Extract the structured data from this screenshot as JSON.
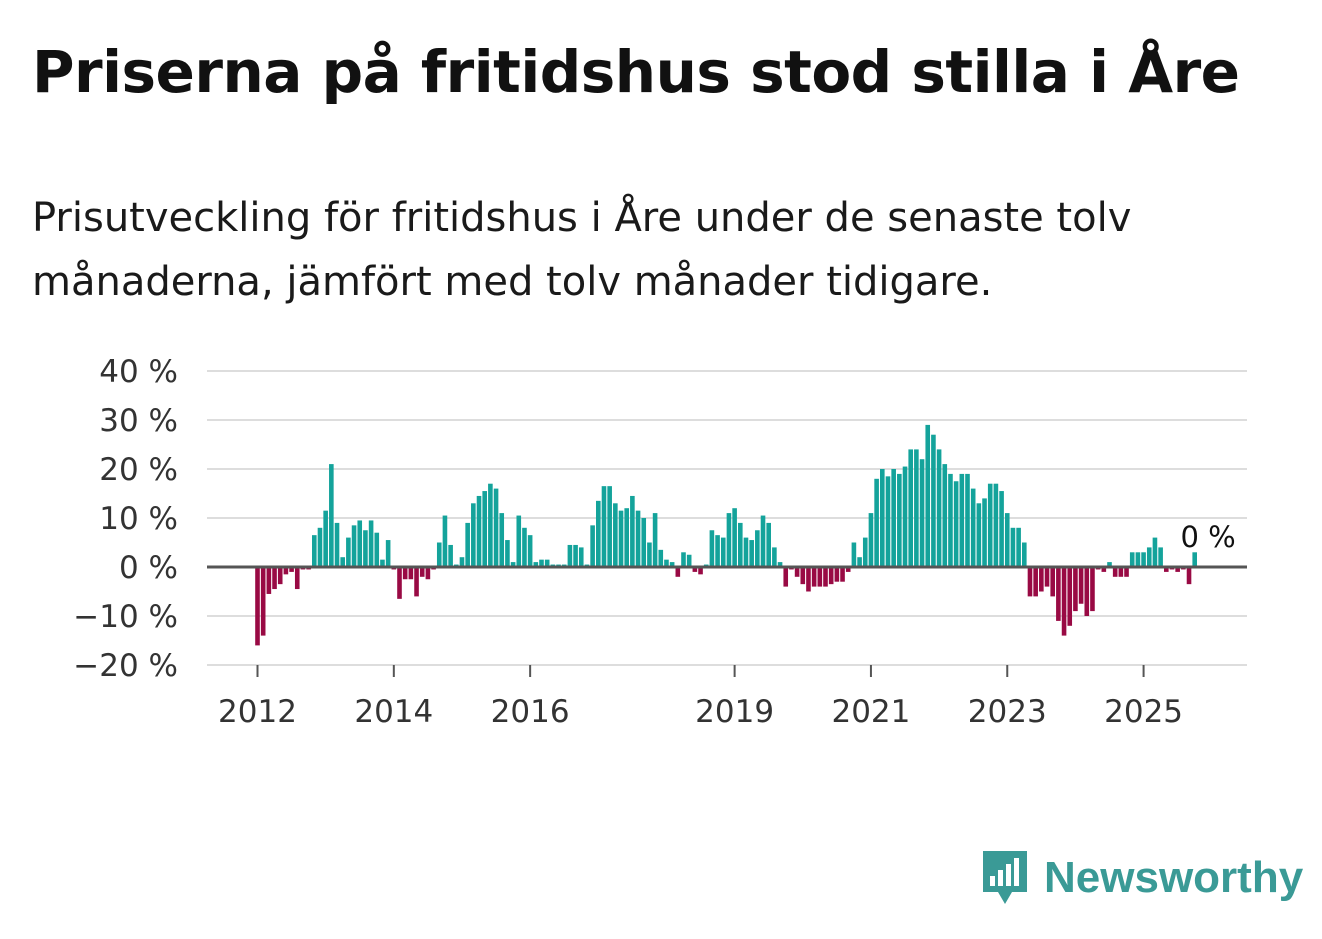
{
  "title": "Priserna på fritidshus stod stilla i Åre",
  "subtitle": "Prisutveckling för fritidshus i Åre under de senaste tolv månaderna, jämfört med tolv månader tidigare.",
  "brand": {
    "name": "Newsworthy",
    "icon": "newsworthy-logo-icon",
    "color": "#3a9a96"
  },
  "colors": {
    "positive": "#14a39b",
    "negative": "#990a44",
    "grid": "#dddddd",
    "zero_line": "#555555"
  },
  "chart_data": {
    "type": "bar",
    "title": "Priserna på fritidshus stod stilla i Åre",
    "ylabel": "",
    "xlabel": "",
    "ylim": [
      -20,
      40
    ],
    "yticks": [
      -20,
      -10,
      0,
      10,
      20,
      30,
      40
    ],
    "ytick_labels": [
      "−20 %",
      "−10 %",
      "0 %",
      "10 %",
      "20 %",
      "30 %",
      "40 %"
    ],
    "x_start": "2012-01",
    "x_end": "2025-12",
    "xticks": [
      "2012",
      "2014",
      "2016",
      "2019",
      "2021",
      "2023",
      "2025"
    ],
    "last_value_label": "0 %",
    "series": [
      {
        "name": "Prisutveckling",
        "values": [
          -16,
          -14,
          -5.5,
          -4.5,
          -3.5,
          -1.5,
          -1,
          -4.5,
          -0.5,
          -0.5,
          6.5,
          8,
          11.5,
          21,
          9,
          2,
          6,
          8.5,
          9.5,
          7.5,
          9.5,
          7,
          1.5,
          5.5,
          -0.5,
          -6.5,
          -2.5,
          -2.5,
          -6,
          -2,
          -2.5,
          -0.5,
          5,
          10.5,
          4.5,
          0.5,
          2,
          9,
          13,
          14.5,
          15.5,
          17,
          16,
          11,
          5.5,
          1,
          10.5,
          8,
          6.5,
          1,
          1.5,
          1.5,
          0.5,
          0.5,
          0.5,
          4.5,
          4.5,
          4,
          0.5,
          8.5,
          13.5,
          16.5,
          16.5,
          13,
          11.5,
          12,
          14.5,
          11.5,
          10,
          5,
          11,
          3.5,
          1.5,
          1,
          -2,
          3,
          2.5,
          -1,
          -1.5,
          0.5,
          7.5,
          6.5,
          6,
          11,
          12,
          9,
          6,
          5.5,
          7.5,
          10.5,
          9,
          4,
          1,
          -4,
          -0.5,
          -2,
          -3.5,
          -5,
          -4,
          -4,
          -4,
          -3.5,
          -3,
          -3,
          -1,
          5,
          2,
          6,
          11,
          18,
          20,
          18.5,
          20,
          19,
          20.5,
          24,
          24,
          22,
          29,
          27,
          24,
          21,
          19,
          17.5,
          19,
          19,
          16,
          13,
          14,
          17,
          17,
          15.5,
          11,
          8,
          8,
          5,
          -6,
          -6,
          -5,
          -4,
          -6,
          -11,
          -14,
          -12,
          -9,
          -7.5,
          -10,
          -9,
          -0.5,
          -1,
          1,
          -2,
          -2,
          -2,
          3,
          3,
          3,
          4,
          6,
          4,
          -1,
          -0.5,
          -1,
          -0.5,
          -3.5,
          3,
          0,
          0
        ]
      }
    ]
  }
}
